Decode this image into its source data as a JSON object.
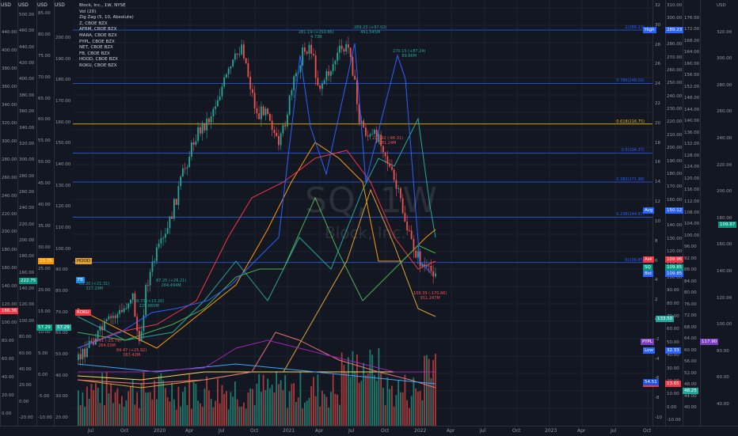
{
  "chart": {
    "symbol_line": "Block, Inc., 1W, NYSE",
    "watermark_symbol": "SQ, 1W",
    "watermark_name": "Block, Inc.",
    "indicators": [
      "Vol (20)",
      "Zig Zag (5, 10, Absolute)"
    ],
    "compare_symbols": [
      "Z, CBOE BZX",
      "AFRM, CBOE BZX",
      "MARA, CBOE BZX",
      "PYPL, CBOE BZX",
      "NET, CBOE BZX",
      "FB, CBOE BZX",
      "HOOD, CBOE BZX",
      "ROKU, CBOE BZX"
    ]
  },
  "axes": {
    "unit": "USD",
    "axis1_labels": [
      "440.00",
      "400.00",
      "380.00",
      "360.00",
      "340.00",
      "320.00",
      "300.00",
      "280.00",
      "260.00",
      "240.00",
      "220.00",
      "200.00",
      "180.00",
      "160.00",
      "140.00",
      "120.00",
      "100.00",
      "80.00",
      "60.00",
      "40.00",
      "20.00",
      "0.00"
    ],
    "axis2_labels": [
      "500.00",
      "460.00",
      "440.00",
      "420.00",
      "400.00",
      "380.00",
      "360.00",
      "340.00",
      "320.00",
      "300.00",
      "280.00",
      "260.00",
      "240.00",
      "220.00",
      "200.00",
      "180.00",
      "160.00",
      "140.00",
      "120.00",
      "100.00",
      "80.00",
      "60.00",
      "40.00",
      "20.00",
      "0.00",
      "-20.00"
    ],
    "axis3_labels": [
      "85.00",
      "80.00",
      "75.00",
      "70.00",
      "65.00",
      "60.00",
      "55.00",
      "50.00",
      "45.00",
      "40.00",
      "35.00",
      "30.00",
      "25.00",
      "20.00",
      "15.00",
      "10.00",
      "5.00",
      "0.00",
      "-5.00",
      "-10.00"
    ],
    "axis4_labels": [
      "200.00",
      "190.00",
      "180.00",
      "170.00",
      "160.00",
      "150.00",
      "140.00",
      "130.00",
      "120.00",
      "110.00",
      "100.00",
      "90.00",
      "80.00",
      "70.00",
      "60.00",
      "50.00",
      "40.00",
      "30.00",
      "20.00"
    ],
    "right1_labels": [
      "32",
      "30",
      "28",
      "26",
      "24",
      "22",
      "20",
      "18",
      "16",
      "14",
      "12",
      "10",
      "8",
      "6",
      "4",
      "2",
      "0",
      "-2",
      "-4",
      "-6",
      "-8",
      "-10"
    ],
    "right2_labels": [
      "310.00",
      "300.00",
      "290.00",
      "280.00",
      "270.00",
      "260.00",
      "250.00",
      "240.00",
      "230.00",
      "220.00",
      "210.00",
      "200.00",
      "190.00",
      "180.00",
      "170.00",
      "160.00",
      "150.00",
      "140.00",
      "130.00",
      "120.00",
      "110.00",
      "100.00",
      "90.00",
      "80.00",
      "70.00",
      "60.00",
      "50.00",
      "40.00",
      "30.00",
      "20.00",
      "10.00",
      "0.00",
      "-10.00"
    ],
    "right3_labels": [
      "176.00",
      "172.00",
      "168.00",
      "164.00",
      "160.00",
      "156.00",
      "152.00",
      "148.00",
      "144.00",
      "140.00",
      "136.00",
      "132.00",
      "128.00",
      "124.00",
      "120.00",
      "116.00",
      "112.00",
      "108.00",
      "104.00",
      "100.00",
      "96.00",
      "92.00",
      "88.00",
      "84.00",
      "80.00",
      "76.00",
      "72.00",
      "68.00",
      "64.00",
      "60.00",
      "56.00",
      "52.00",
      "48.00",
      "44.00",
      "40.00"
    ],
    "right4_labels": [
      "USD",
      "320.00",
      "300.00",
      "280.00",
      "260.00",
      "240.00",
      "220.00",
      "200.00",
      "180.00",
      "160.00",
      "140.00",
      "120.00",
      "100.00",
      "80.00",
      "60.00",
      "40.00"
    ]
  },
  "time_axis": [
    "Jul",
    "Oct",
    "2020",
    "Apr",
    "Jul",
    "Oct",
    "2021",
    "Apr",
    "Jul",
    "Oct",
    "2022",
    "Apr",
    "Jul",
    "Oct",
    "2023",
    "Apr",
    "Jul",
    "Oct"
  ],
  "fib_levels": [
    {
      "label": "1(289.23)",
      "color": "#2962ff",
      "price": 289.23
    },
    {
      "label": "0.786(248.02)",
      "color": "#2962ff",
      "price": 248.02
    },
    {
      "label": "0.618(216.75)",
      "color": "#f0b90b",
      "price": 216.75
    },
    {
      "label": "0.5(194.37)",
      "color": "#2962ff",
      "price": 194.37
    },
    {
      "label": "0.382(171.98)",
      "color": "#2962ff",
      "price": 171.98
    },
    {
      "label": "0.236(144.87)",
      "color": "#2962ff",
      "price": 144.87
    },
    {
      "label": "0(109.85)",
      "color": "#2962ff",
      "price": 109.85
    }
  ],
  "right_tags": [
    {
      "text": "High",
      "value": "289.23",
      "color": "#2962ff"
    },
    {
      "text": "Avg",
      "value": "150.12",
      "color": "#2962ff"
    },
    {
      "text": "Ask",
      "value": "109.96",
      "color": "#f23645"
    },
    {
      "text": "SQ",
      "value": "109.85",
      "color": "#089981"
    },
    {
      "text": "Bid",
      "value": "109.85",
      "color": "#2962ff"
    },
    {
      "text": "Low",
      "value": "32.33",
      "color": "#2962ff"
    },
    {
      "text": "AFRM",
      "value": "13.65",
      "color": "#f23645"
    }
  ],
  "side_values": {
    "left_red": "166.36",
    "left_green": "222.75",
    "left_z": "57.29",
    "left_orange": "23.75",
    "pypl": "117.90",
    "net": "133.50",
    "fb": "54.96",
    "mid_blue": "54.51",
    "mid_teal": "48.25",
    "right_green": "109.87"
  },
  "annotations": [
    {
      "text": "281.19 (+250.86)\n4.73B",
      "color": "#26a69a"
    },
    {
      "text": "289.23 (+97.02)\n491.545M",
      "color": "#26a69a"
    },
    {
      "text": "270.15 (+87.24)\n89.66M",
      "color": "#26a69a"
    },
    {
      "text": "222.92 (-66.31)\n281.24M",
      "color": "#ef5350"
    },
    {
      "text": "109.39 (-170.66)\n911.247M",
      "color": "#ef5350"
    },
    {
      "text": "87.25 (+26.21)\n264.494M",
      "color": "#26a69a"
    },
    {
      "text": "69.73 (+15.20)\n225.865M",
      "color": "#26a69a"
    },
    {
      "text": "83.20 (+21.31)\n327.29M",
      "color": "#26a69a"
    },
    {
      "text": "84.47 (+25.92)\n167.42M",
      "color": "#ef5350"
    },
    {
      "text": "58.61 (-25.79)\n264.03M",
      "color": "#ef5350"
    }
  ],
  "compare_tags": {
    "roku": "ROKU",
    "hood": "HOOD",
    "fb": "FB",
    "pypl": "PYPL"
  }
}
